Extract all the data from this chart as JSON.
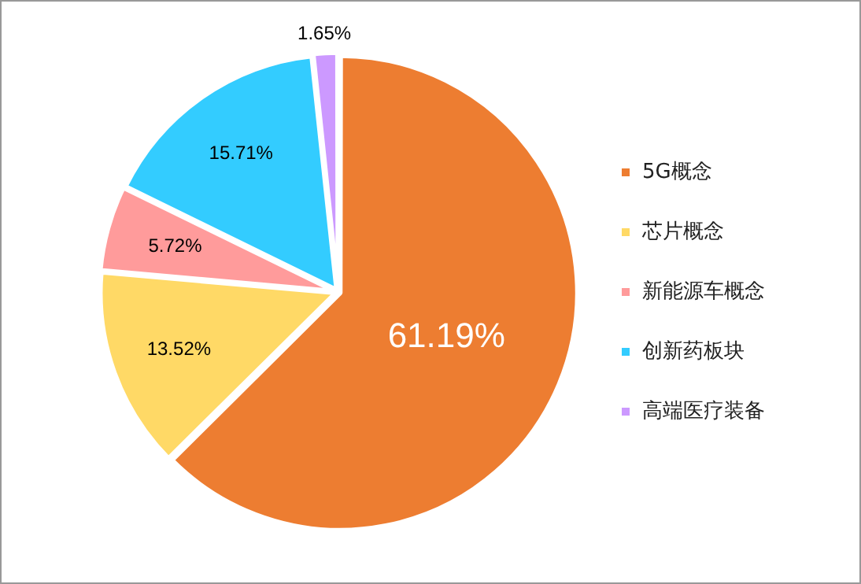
{
  "chart_data": {
    "type": "pie",
    "categories": [
      "5G概念",
      "芯片概念",
      "新能源车概念",
      "创新药板块",
      "高端医疗装备"
    ],
    "values": [
      61.19,
      13.52,
      5.72,
      15.71,
      1.65
    ],
    "colors": [
      "#ed7d31",
      "#ffd966",
      "#ff9b9b",
      "#33ccff",
      "#cc99ff"
    ],
    "value_labels": [
      "61.19%",
      "13.52%",
      "5.72%",
      "15.71%",
      "1.65%"
    ],
    "legend": "right"
  }
}
